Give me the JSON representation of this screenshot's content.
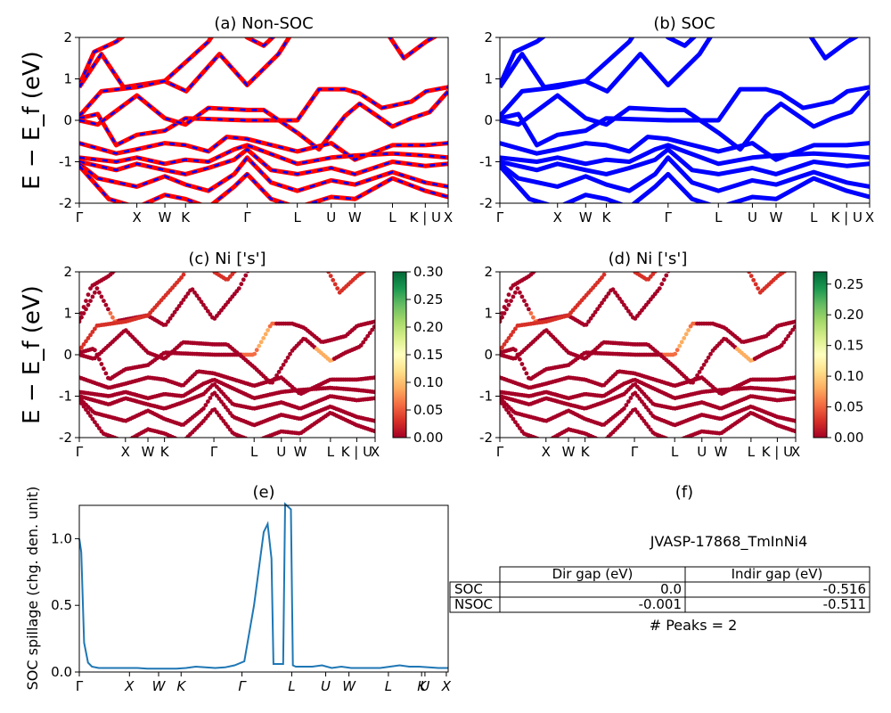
{
  "figure": {
    "ylabel_band": "E − E_f (eV)",
    "ylabel_spillage": "SOC spillage (chg. den. unit)"
  },
  "colors": {
    "band_red": "#ff0000",
    "band_blue": "#0000ff",
    "spillage_line": "#1f77b4"
  },
  "chart_data": [
    {
      "type": "line",
      "panel": "a",
      "title": "(a) Non-SOC",
      "ylim": [
        -2,
        2
      ],
      "yticks": [
        "-2",
        "-1",
        "0",
        "1",
        "2"
      ],
      "kpath_labels": [
        "Γ",
        "X",
        "W",
        "K",
        "Γ",
        "L",
        "U",
        "W",
        "L",
        "K | U",
        "X"
      ],
      "series": [
        {
          "color": "#ff0000",
          "style": "solid"
        },
        {
          "color": "#0000ff",
          "style": "dashed"
        }
      ]
    },
    {
      "type": "line",
      "panel": "b",
      "title": "(b) SOC",
      "ylim": [
        -2,
        2
      ],
      "yticks": [
        "-2",
        "-1",
        "0",
        "1",
        "2"
      ],
      "kpath_labels": [
        "Γ",
        "X",
        "W",
        "K",
        "Γ",
        "L",
        "U",
        "W",
        "L",
        "K | U",
        "X"
      ],
      "series": [
        {
          "color": "#0000ff",
          "style": "solid"
        }
      ]
    },
    {
      "type": "scatter",
      "panel": "c",
      "title": "(c)  Ni ['s']",
      "ylim": [
        -2,
        2
      ],
      "yticks": [
        "-2",
        "-1",
        "0",
        "1",
        "2"
      ],
      "kpath_labels": [
        "Γ",
        "X",
        "W",
        "K",
        "Γ",
        "L",
        "U",
        "W",
        "L",
        "K | U",
        "X"
      ],
      "colorbar": {
        "cmap": "RdYlGn",
        "range": [
          0,
          0.3
        ],
        "ticks": [
          "0.00",
          "0.05",
          "0.10",
          "0.15",
          "0.20",
          "0.25",
          "0.30"
        ]
      }
    },
    {
      "type": "scatter",
      "panel": "d",
      "title": "(d) Ni ['s']",
      "ylim": [
        -2,
        2
      ],
      "yticks": [
        "-2",
        "-1",
        "0",
        "1",
        "2"
      ],
      "kpath_labels": [
        "Γ",
        "X",
        "W",
        "K",
        "Γ",
        "L",
        "U",
        "W",
        "L",
        "K | U",
        "X"
      ],
      "colorbar": {
        "cmap": "RdYlGn",
        "range": [
          0,
          0.27
        ],
        "ticks": [
          "0.00",
          "0.05",
          "0.10",
          "0.15",
          "0.20",
          "0.25"
        ]
      }
    },
    {
      "type": "line",
      "panel": "e",
      "title": "(e)",
      "ylabel": "SOC spillage (chg. den. unit)",
      "ylim": [
        0,
        1.25
      ],
      "yticks": [
        "0.0",
        "0.5",
        "1.0"
      ],
      "kpath_labels": [
        "Γ",
        "X",
        "W",
        "K",
        "Γ",
        "L",
        "U",
        "W",
        "L",
        "K",
        "U",
        "X"
      ],
      "x": [
        0,
        0.2,
        0.5,
        0.9,
        1.3,
        2,
        3,
        4,
        5,
        6,
        7,
        8,
        9,
        10,
        11,
        12,
        13,
        14,
        15,
        16,
        17,
        18,
        19,
        19.4,
        19.8,
        20,
        20.3,
        20.7,
        21,
        21.2,
        21.5,
        21.8,
        22,
        22.3,
        23,
        24,
        25,
        26,
        27,
        28,
        29,
        30,
        31,
        32,
        33,
        34,
        35,
        36,
        37,
        38
      ],
      "values": [
        1.0,
        0.9,
        0.22,
        0.07,
        0.04,
        0.03,
        0.03,
        0.03,
        0.03,
        0.03,
        0.025,
        0.025,
        0.025,
        0.025,
        0.03,
        0.04,
        0.035,
        0.03,
        0.035,
        0.05,
        0.08,
        0.5,
        1.05,
        1.11,
        0.85,
        0.06,
        0.06,
        0.06,
        0.06,
        1.26,
        1.24,
        1.22,
        0.05,
        0.04,
        0.04,
        0.04,
        0.05,
        0.03,
        0.04,
        0.03,
        0.03,
        0.03,
        0.03,
        0.04,
        0.05,
        0.04,
        0.04,
        0.035,
        0.03,
        0.03
      ]
    },
    {
      "type": "table",
      "panel": "f",
      "title": "(f)",
      "material": "JVASP-17868_TmInNi4",
      "columns": [
        "",
        "Dir gap (eV)",
        "Indir gap (eV)"
      ],
      "rows": [
        [
          "SOC",
          "0.0",
          "-0.516"
        ],
        [
          "NSOC",
          "-0.001",
          "-0.511"
        ]
      ],
      "peaks": "# Peaks = 2"
    }
  ]
}
